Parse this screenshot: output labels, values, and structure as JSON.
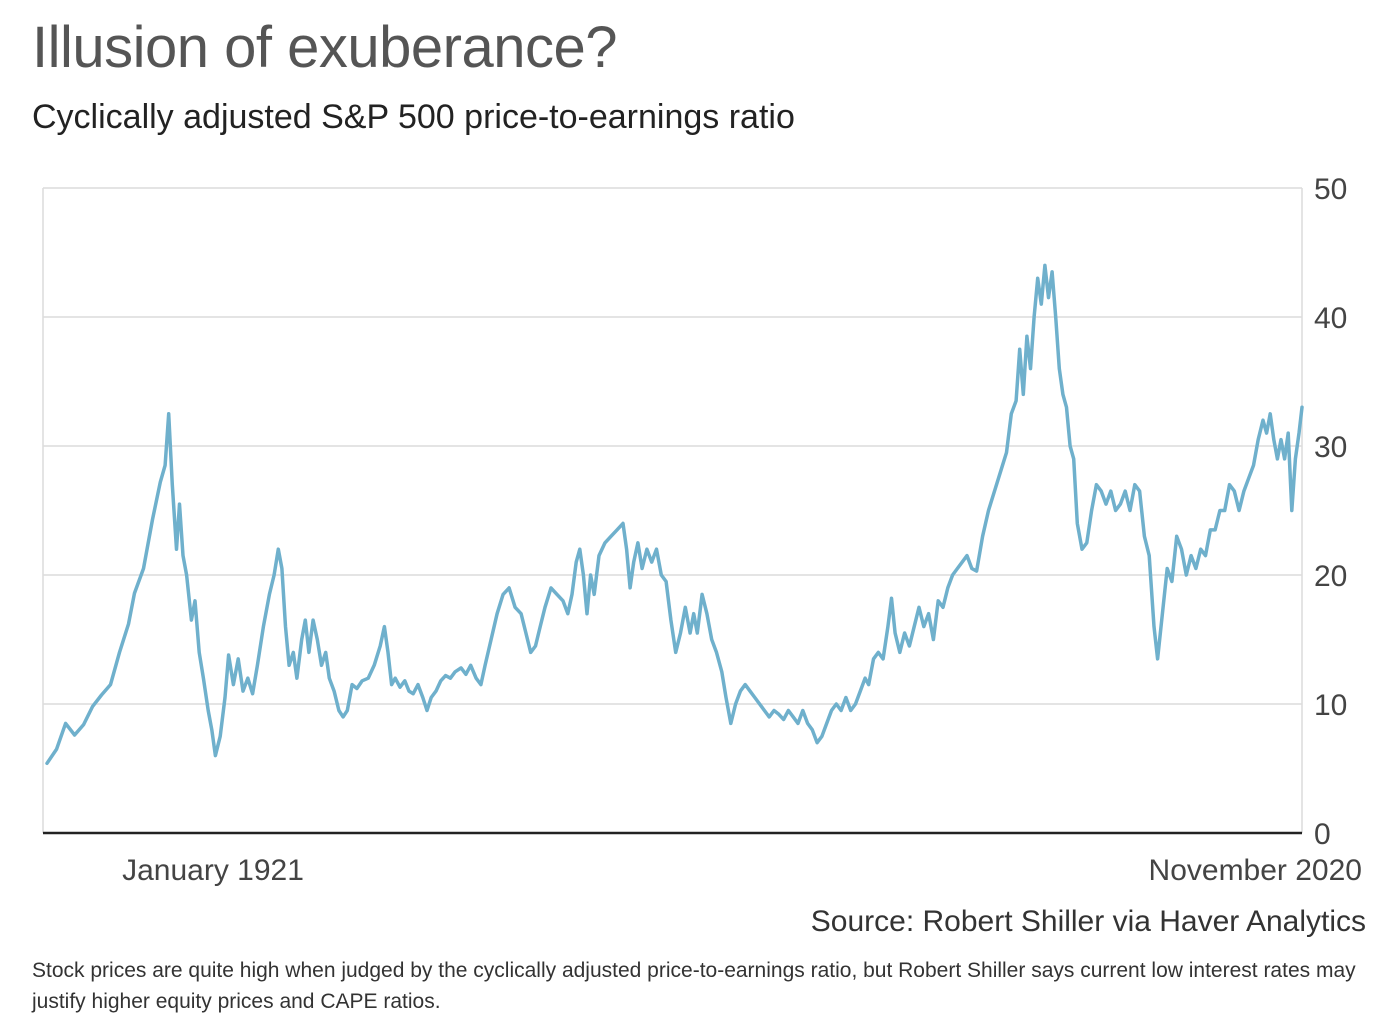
{
  "title": "Illusion of exuberance?",
  "subtitle": "Cyclically adjusted S&P 500 price-to-earnings ratio",
  "source": "Source: Robert Shiller via Haver Analytics",
  "caption": "Stock prices are quite high when judged by the cyclically adjusted price-to-earnings ratio, but Robert Shiller says current low interest rates may justify higher equity prices and CAPE ratios.",
  "colors": {
    "line": "#6fb0cc",
    "grid": "#dcdcdc",
    "axis": "#222222",
    "tick_text": "#444444"
  },
  "chart_data": {
    "type": "line",
    "x_labels": [
      "January 1921",
      "November 2020"
    ],
    "ylim": [
      0,
      50
    ],
    "y_ticks": [
      0,
      10,
      20,
      30,
      40,
      50
    ],
    "y_axis_side": "right",
    "grid": true,
    "series": [
      {
        "values": [
          [
            1900.9,
            5.4
          ],
          [
            1902.5,
            6.5
          ],
          [
            1904.0,
            8.5
          ],
          [
            1905.5,
            7.6
          ],
          [
            1907.0,
            8.4
          ],
          [
            1908.5,
            9.8
          ],
          [
            1910.0,
            10.7
          ],
          [
            1911.5,
            11.5
          ],
          [
            1913.0,
            14.0
          ],
          [
            1914.5,
            16.2
          ],
          [
            1915.5,
            18.6
          ],
          [
            1917.0,
            20.5
          ],
          [
            1918.5,
            24.3
          ],
          [
            1919.8,
            27.2
          ],
          [
            1920.6,
            28.5
          ],
          [
            1921.2,
            32.5
          ],
          [
            1921.8,
            27.0
          ],
          [
            1922.5,
            22.0
          ],
          [
            1923.0,
            25.5
          ],
          [
            1923.6,
            21.5
          ],
          [
            1924.2,
            20.0
          ],
          [
            1925.0,
            16.5
          ],
          [
            1925.6,
            18.0
          ],
          [
            1926.3,
            14.0
          ],
          [
            1927.0,
            12.0
          ],
          [
            1927.8,
            9.5
          ],
          [
            1928.4,
            8.0
          ],
          [
            1929.0,
            6.0
          ],
          [
            1929.8,
            7.5
          ],
          [
            1930.6,
            10.5
          ],
          [
            1931.2,
            13.8
          ],
          [
            1932.0,
            11.5
          ],
          [
            1932.8,
            13.5
          ],
          [
            1933.6,
            11.0
          ],
          [
            1934.4,
            12.0
          ],
          [
            1935.2,
            10.8
          ],
          [
            1936.0,
            13.0
          ],
          [
            1937.0,
            16.0
          ],
          [
            1938.0,
            18.5
          ],
          [
            1938.8,
            20.0
          ],
          [
            1939.5,
            22.0
          ],
          [
            1940.1,
            20.5
          ],
          [
            1940.7,
            16.0
          ],
          [
            1941.3,
            13.0
          ],
          [
            1942.0,
            14.0
          ],
          [
            1942.6,
            12.0
          ],
          [
            1943.4,
            15.0
          ],
          [
            1944.0,
            16.5
          ],
          [
            1944.6,
            14.0
          ],
          [
            1945.3,
            16.5
          ],
          [
            1946.0,
            15.0
          ],
          [
            1946.7,
            13.0
          ],
          [
            1947.4,
            14.0
          ],
          [
            1948.0,
            12.0
          ],
          [
            1948.8,
            11.0
          ],
          [
            1949.6,
            9.5
          ],
          [
            1950.3,
            9.0
          ],
          [
            1951.0,
            9.5
          ],
          [
            1951.8,
            11.5
          ],
          [
            1952.6,
            11.2
          ],
          [
            1953.5,
            11.8
          ],
          [
            1954.5,
            12.0
          ],
          [
            1955.5,
            13.0
          ],
          [
            1956.5,
            14.5
          ],
          [
            1957.2,
            16.0
          ],
          [
            1957.8,
            14.0
          ],
          [
            1958.4,
            11.5
          ],
          [
            1959.0,
            12.0
          ],
          [
            1959.8,
            11.3
          ],
          [
            1960.6,
            11.8
          ],
          [
            1961.3,
            11.0
          ],
          [
            1962.0,
            10.8
          ],
          [
            1962.8,
            11.5
          ],
          [
            1963.6,
            10.5
          ],
          [
            1964.3,
            9.5
          ],
          [
            1965.0,
            10.5
          ],
          [
            1965.8,
            11.0
          ],
          [
            1966.6,
            11.8
          ],
          [
            1967.4,
            12.2
          ],
          [
            1968.2,
            12.0
          ],
          [
            1969.0,
            12.5
          ],
          [
            1970.0,
            12.8
          ],
          [
            1970.8,
            12.3
          ],
          [
            1971.6,
            13.0
          ],
          [
            1972.5,
            12.0
          ],
          [
            1973.3,
            11.5
          ],
          [
            1974.0,
            13.0
          ],
          [
            1975.0,
            15.0
          ],
          [
            1976.0,
            17.0
          ],
          [
            1977.0,
            18.5
          ],
          [
            1978.0,
            19.0
          ],
          [
            1979.0,
            17.5
          ],
          [
            1980.0,
            17.0
          ],
          [
            1980.8,
            15.5
          ],
          [
            1981.6,
            14.0
          ],
          [
            1982.4,
            14.5
          ],
          [
            1983.2,
            16.0
          ],
          [
            1984.0,
            17.5
          ],
          [
            1985.0,
            19.0
          ],
          [
            1986.0,
            18.5
          ],
          [
            1987.0,
            18.0
          ],
          [
            1987.8,
            17.0
          ],
          [
            1988.5,
            18.5
          ],
          [
            1989.2,
            21.0
          ],
          [
            1989.8,
            22.0
          ],
          [
            1990.4,
            20.0
          ],
          [
            1991.0,
            17.0
          ],
          [
            1991.6,
            20.0
          ],
          [
            1992.2,
            18.5
          ],
          [
            1993.0,
            21.5
          ],
          [
            1994.0,
            22.5
          ],
          [
            1995.0,
            23.0
          ],
          [
            1996.0,
            23.5
          ],
          [
            1997.0,
            24.0
          ],
          [
            1997.6,
            22.0
          ],
          [
            1998.2,
            19.0
          ],
          [
            1998.8,
            21.0
          ],
          [
            1999.5,
            22.5
          ],
          [
            2000.2,
            20.5
          ],
          [
            2001.0,
            22.0
          ],
          [
            2001.8,
            21.0
          ],
          [
            2002.6,
            22.0
          ],
          [
            2003.4,
            20.0
          ],
          [
            2004.2,
            19.5
          ],
          [
            2005.0,
            16.5
          ],
          [
            2005.8,
            14.0
          ],
          [
            2006.6,
            15.5
          ],
          [
            2007.4,
            17.5
          ],
          [
            2008.2,
            15.5
          ],
          [
            2008.8,
            17.0
          ],
          [
            2009.4,
            15.5
          ],
          [
            2010.2,
            18.5
          ],
          [
            2011.0,
            17.0
          ],
          [
            2011.8,
            15.0
          ],
          [
            2012.6,
            14.0
          ],
          [
            2013.5,
            12.5
          ],
          [
            2014.2,
            10.5
          ],
          [
            2015.0,
            8.5
          ],
          [
            2015.8,
            10.0
          ],
          [
            2016.6,
            11.0
          ],
          [
            2017.4,
            11.5
          ],
          [
            2018.2,
            11.0
          ],
          [
            2019.0,
            10.5
          ],
          [
            2019.8,
            10.0
          ],
          [
            2020.6,
            9.5
          ],
          [
            2021.4,
            9.0
          ],
          [
            2022.2,
            9.5
          ],
          [
            2023.0,
            9.2
          ],
          [
            2023.8,
            8.8
          ],
          [
            2024.6,
            9.5
          ],
          [
            2025.4,
            9.0
          ],
          [
            2026.2,
            8.5
          ],
          [
            2027.0,
            9.5
          ],
          [
            2027.8,
            8.5
          ],
          [
            2028.6,
            8.0
          ],
          [
            2029.4,
            7.0
          ],
          [
            2030.2,
            7.5
          ],
          [
            2031.0,
            8.5
          ],
          [
            2031.8,
            9.5
          ],
          [
            2032.6,
            10.0
          ],
          [
            2033.4,
            9.5
          ],
          [
            2034.2,
            10.5
          ],
          [
            2035.0,
            9.5
          ],
          [
            2035.8,
            10.0
          ],
          [
            2036.6,
            11.0
          ],
          [
            2037.4,
            12.0
          ],
          [
            2038.0,
            11.5
          ],
          [
            2038.8,
            13.5
          ],
          [
            2039.6,
            14.0
          ],
          [
            2040.4,
            13.5
          ],
          [
            2041.2,
            16.0
          ],
          [
            2041.8,
            18.2
          ],
          [
            2042.4,
            15.5
          ],
          [
            2043.2,
            14.0
          ],
          [
            2044.0,
            15.5
          ],
          [
            2044.8,
            14.5
          ],
          [
            2045.6,
            16.0
          ],
          [
            2046.4,
            17.5
          ],
          [
            2047.2,
            16.0
          ],
          [
            2048.0,
            17.0
          ],
          [
            2048.8,
            15.0
          ],
          [
            2049.6,
            18.0
          ],
          [
            2050.4,
            17.5
          ],
          [
            2051.2,
            19.0
          ],
          [
            2052.0,
            20.0
          ],
          [
            2052.8,
            20.5
          ],
          [
            2053.6,
            21.0
          ],
          [
            2054.4,
            21.5
          ],
          [
            2055.2,
            20.5
          ],
          [
            2056.0,
            20.3
          ],
          [
            2057.0,
            23.0
          ],
          [
            2058.0,
            25.0
          ],
          [
            2059.0,
            26.5
          ],
          [
            2060.0,
            28.0
          ],
          [
            2061.0,
            29.5
          ],
          [
            2061.8,
            32.5
          ],
          [
            2062.6,
            33.5
          ],
          [
            2063.2,
            37.5
          ],
          [
            2063.8,
            34.0
          ],
          [
            2064.4,
            38.5
          ],
          [
            2065.0,
            36.0
          ],
          [
            2065.6,
            40.0
          ],
          [
            2066.2,
            43.0
          ],
          [
            2066.8,
            41.0
          ],
          [
            2067.4,
            44.0
          ],
          [
            2068.0,
            41.5
          ],
          [
            2068.6,
            43.5
          ],
          [
            2069.2,
            40.0
          ],
          [
            2069.8,
            36.0
          ],
          [
            2070.4,
            34.0
          ],
          [
            2071.0,
            33.0
          ],
          [
            2071.6,
            30.0
          ],
          [
            2072.2,
            29.0
          ],
          [
            2072.8,
            24.0
          ],
          [
            2073.6,
            22.0
          ],
          [
            2074.4,
            22.5
          ],
          [
            2075.2,
            25.0
          ],
          [
            2076.0,
            27.0
          ],
          [
            2076.8,
            26.5
          ],
          [
            2077.6,
            25.5
          ],
          [
            2078.4,
            26.5
          ],
          [
            2079.2,
            25.0
          ],
          [
            2080.0,
            25.5
          ],
          [
            2080.8,
            26.5
          ],
          [
            2081.6,
            25.0
          ],
          [
            2082.4,
            27.0
          ],
          [
            2083.2,
            26.5
          ],
          [
            2084.0,
            23.0
          ],
          [
            2084.8,
            21.5
          ],
          [
            2085.6,
            16.0
          ],
          [
            2086.2,
            13.5
          ],
          [
            2087.0,
            17.0
          ],
          [
            2087.8,
            20.5
          ],
          [
            2088.6,
            19.5
          ],
          [
            2089.4,
            23.0
          ],
          [
            2090.2,
            22.0
          ],
          [
            2091.0,
            20.0
          ],
          [
            2091.8,
            21.5
          ],
          [
            2092.6,
            20.5
          ],
          [
            2093.4,
            22.0
          ],
          [
            2094.2,
            21.5
          ],
          [
            2095.0,
            23.5
          ],
          [
            2095.8,
            23.5
          ],
          [
            2096.6,
            25.0
          ],
          [
            2097.4,
            25.0
          ],
          [
            2098.2,
            27.0
          ],
          [
            2099.0,
            26.5
          ],
          [
            2099.8,
            25.0
          ],
          [
            2100.6,
            26.5
          ],
          [
            2101.4,
            27.5
          ],
          [
            2102.2,
            28.5
          ],
          [
            2103.0,
            30.5
          ],
          [
            2103.8,
            32.0
          ],
          [
            2104.4,
            31.0
          ],
          [
            2105.0,
            32.5
          ],
          [
            2105.6,
            30.5
          ],
          [
            2106.2,
            29.0
          ],
          [
            2106.8,
            30.5
          ],
          [
            2107.4,
            29.0
          ],
          [
            2108.0,
            31.0
          ],
          [
            2108.6,
            25.0
          ],
          [
            2109.2,
            29.0
          ],
          [
            2109.8,
            31.0
          ],
          [
            2110.3,
            33.0
          ]
        ]
      }
    ]
  }
}
